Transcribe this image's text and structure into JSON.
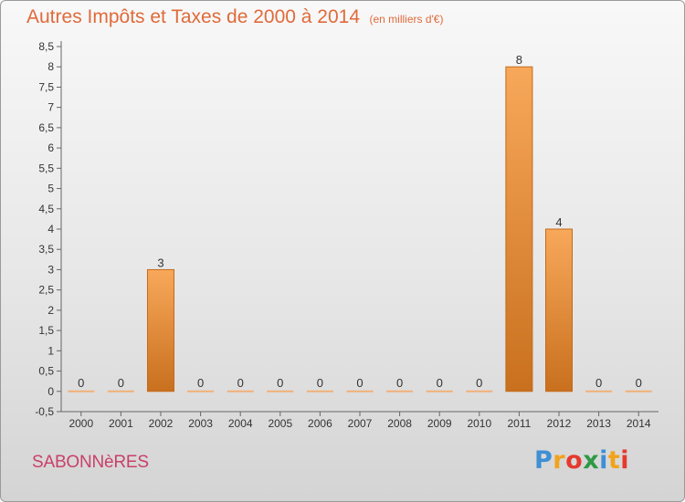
{
  "header": {
    "title": "Autres Impôts et Taxes de 2000 à 2014",
    "unit": "(en milliers d'€)"
  },
  "footer": {
    "commune": "SABONNèRES",
    "brand_letters": [
      {
        "ch": "P",
        "color": "#3f8fd4"
      },
      {
        "ch": "r",
        "color": "#f2a21b"
      },
      {
        "ch": "o",
        "color": "#e5392f"
      },
      {
        "ch": "x",
        "color": "#2e9a46"
      },
      {
        "ch": "i",
        "color": "#3f8fd4"
      },
      {
        "ch": "t",
        "color": "#f2a21b"
      },
      {
        "ch": "i",
        "color": "#e5392f"
      }
    ]
  },
  "colors": {
    "bar_light": "#f8a85a",
    "bar_dark": "#c8701e",
    "bar_border": "#c46a1a",
    "zero_bar": "#f2b07a",
    "axis": "#666666"
  },
  "chart_data": {
    "type": "bar",
    "categories": [
      "2000",
      "2001",
      "2002",
      "2003",
      "2004",
      "2005",
      "2006",
      "2007",
      "2008",
      "2009",
      "2010",
      "2011",
      "2012",
      "2013",
      "2014"
    ],
    "values": [
      0,
      0,
      3,
      0,
      0,
      0,
      0,
      0,
      0,
      0,
      0,
      8,
      4,
      0,
      0
    ],
    "data_labels": [
      "0",
      "0",
      "3",
      "0",
      "0",
      "0",
      "0",
      "0",
      "0",
      "0",
      "0",
      "8",
      "4",
      "0",
      "0"
    ],
    "yticks": [
      -0.5,
      0,
      0.5,
      1,
      1.5,
      2,
      2.5,
      3,
      3.5,
      4,
      4.5,
      5,
      5.5,
      6,
      6.5,
      7,
      7.5,
      8,
      8.5
    ],
    "ytick_labels": [
      "-0,5",
      "0",
      "0,5",
      "1",
      "1,5",
      "2",
      "2,5",
      "3",
      "3,5",
      "4",
      "4,5",
      "5",
      "5,5",
      "6",
      "6,5",
      "7",
      "7,5",
      "8",
      "8,5"
    ],
    "ylim": [
      -0.5,
      8.5
    ],
    "title": "Autres Impôts et Taxes de 2000 à 2014",
    "xlabel": "",
    "ylabel": "",
    "grid": false
  }
}
